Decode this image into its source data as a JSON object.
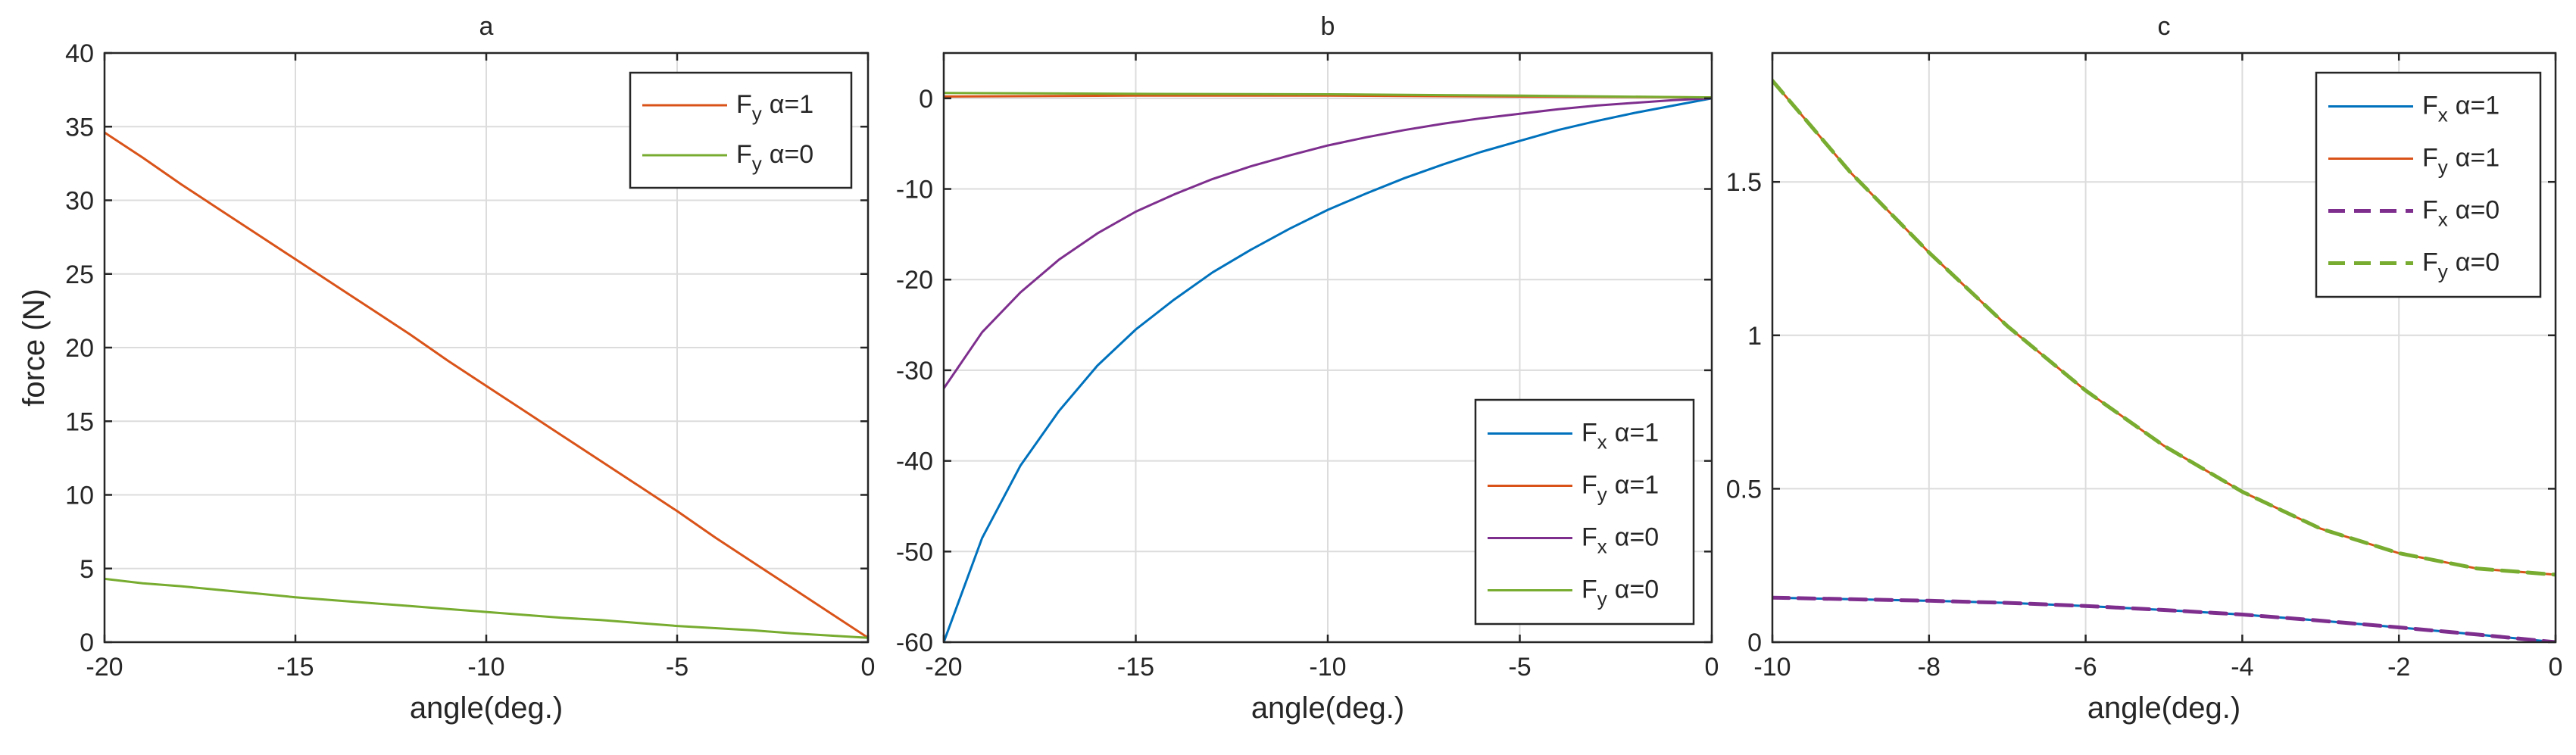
{
  "chart_data": [
    {
      "type": "line",
      "title": "a",
      "xlabel": "angle(deg.)",
      "ylabel": "force (N)",
      "xlim": [
        -20,
        0
      ],
      "ylim": [
        0,
        40
      ],
      "xticks": [
        -20,
        -15,
        -10,
        -5,
        0
      ],
      "yticks": [
        0,
        5,
        10,
        15,
        20,
        25,
        30,
        35,
        40
      ],
      "grid": true,
      "legend_position": "top-right",
      "series": [
        {
          "name": "Fy α=1",
          "base": "F",
          "sub": "y",
          "suffix": "α=1",
          "color": "#D95319",
          "dashed": false,
          "x": [
            -20,
            -19,
            -18,
            -17,
            -16,
            -15,
            -14,
            -13,
            -12,
            -11,
            -10,
            -9,
            -8,
            -7,
            -6,
            -5,
            -4,
            -3,
            -2,
            -1,
            0
          ],
          "y": [
            34.6,
            32.9,
            31.1,
            29.4,
            27.7,
            26.0,
            24.3,
            22.6,
            20.9,
            19.1,
            17.4,
            15.7,
            14.0,
            12.3,
            10.6,
            8.9,
            7.1,
            5.4,
            3.7,
            2.0,
            0.3
          ]
        },
        {
          "name": "Fy α=0",
          "base": "F",
          "sub": "y",
          "suffix": "α=0",
          "color": "#77AC30",
          "dashed": false,
          "x": [
            -20,
            -19,
            -18,
            -17,
            -16,
            -15,
            -14,
            -13,
            -12,
            -11,
            -10,
            -9,
            -8,
            -7,
            -6,
            -5,
            -4,
            -3,
            -2,
            -1,
            0
          ],
          "y": [
            4.3,
            4.0,
            3.8,
            3.55,
            3.3,
            3.05,
            2.85,
            2.65,
            2.45,
            2.25,
            2.05,
            1.85,
            1.65,
            1.5,
            1.3,
            1.1,
            0.95,
            0.8,
            0.6,
            0.45,
            0.3
          ]
        }
      ]
    },
    {
      "type": "line",
      "title": "b",
      "xlabel": "angle(deg.)",
      "ylabel": "",
      "xlim": [
        -20,
        0
      ],
      "ylim": [
        -60,
        5
      ],
      "xticks": [
        -20,
        -15,
        -10,
        -5,
        0
      ],
      "yticks": [
        -60,
        -50,
        -40,
        -30,
        -20,
        -10,
        0
      ],
      "grid": true,
      "legend_position": "bottom-right",
      "series": [
        {
          "name": "Fx α=1",
          "base": "F",
          "sub": "x",
          "suffix": "α=1",
          "color": "#0072BD",
          "dashed": false,
          "x": [
            -20,
            -19,
            -18,
            -17,
            -16,
            -15,
            -14,
            -13,
            -12,
            -11,
            -10,
            -9,
            -8,
            -7,
            -6,
            -5,
            -4,
            -3,
            -2,
            -1,
            0
          ],
          "y": [
            -60,
            -48.5,
            -40.5,
            -34.5,
            -29.5,
            -25.5,
            -22.2,
            -19.2,
            -16.7,
            -14.4,
            -12.3,
            -10.5,
            -8.8,
            -7.3,
            -5.9,
            -4.7,
            -3.5,
            -2.5,
            -1.6,
            -0.8,
            0
          ]
        },
        {
          "name": "Fy α=1",
          "base": "F",
          "sub": "y",
          "suffix": "α=1",
          "color": "#D95319",
          "dashed": false,
          "x": [
            -20,
            -15,
            -10,
            -5,
            0
          ],
          "y": [
            0.2,
            0.3,
            0.3,
            0.2,
            0.1
          ]
        },
        {
          "name": "Fx α=0",
          "base": "F",
          "sub": "x",
          "suffix": "α=0",
          "color": "#7E2F8E",
          "dashed": false,
          "x": [
            -20,
            -19,
            -18,
            -17,
            -16,
            -15,
            -14,
            -13,
            -12,
            -11,
            -10,
            -9,
            -8,
            -7,
            -6,
            -5,
            -4,
            -3,
            -2,
            -1,
            0
          ],
          "y": [
            -32,
            -25.8,
            -21.4,
            -17.8,
            -14.9,
            -12.5,
            -10.6,
            -8.9,
            -7.5,
            -6.3,
            -5.2,
            -4.3,
            -3.5,
            -2.8,
            -2.2,
            -1.7,
            -1.2,
            -0.8,
            -0.5,
            -0.2,
            0
          ]
        },
        {
          "name": "Fy α=0",
          "base": "F",
          "sub": "y",
          "suffix": "α=0",
          "color": "#77AC30",
          "dashed": false,
          "x": [
            -20,
            -15,
            -10,
            -5,
            0
          ],
          "y": [
            0.6,
            0.5,
            0.45,
            0.3,
            0.1
          ]
        }
      ]
    },
    {
      "type": "line",
      "title": "c",
      "xlabel": "angle(deg.)",
      "ylabel": "",
      "xlim": [
        -10,
        0
      ],
      "ylim": [
        0,
        1.92
      ],
      "xticks": [
        -10,
        -8,
        -6,
        -4,
        -2,
        0
      ],
      "yticks": [
        0,
        0.5,
        1,
        1.5
      ],
      "grid": true,
      "legend_position": "top-right",
      "series": [
        {
          "name": "Fx α=1",
          "base": "F",
          "sub": "x",
          "suffix": "α=1",
          "color": "#0072BD",
          "dashed": false,
          "x": [
            -10,
            -9,
            -8,
            -7,
            -6,
            -5,
            -4,
            -3,
            -2,
            -1,
            0
          ],
          "y": [
            0.145,
            0.14,
            0.135,
            0.128,
            0.118,
            0.105,
            0.09,
            0.07,
            0.048,
            0.025,
            0.0
          ]
        },
        {
          "name": "Fy α=1",
          "base": "F",
          "sub": "y",
          "suffix": "α=1",
          "color": "#D95319",
          "dashed": false,
          "x": [
            -10,
            -9,
            -8,
            -7,
            -6,
            -5,
            -4,
            -3,
            -2,
            -1,
            0
          ],
          "y": [
            1.83,
            1.53,
            1.27,
            1.03,
            0.82,
            0.64,
            0.49,
            0.37,
            0.29,
            0.24,
            0.22
          ]
        },
        {
          "name": "Fx α=0",
          "base": "F",
          "sub": "x",
          "suffix": "α=0",
          "color": "#7E2F8E",
          "dashed": true,
          "x": [
            -10,
            -9,
            -8,
            -7,
            -6,
            -5,
            -4,
            -3,
            -2,
            -1,
            0
          ],
          "y": [
            0.145,
            0.14,
            0.135,
            0.128,
            0.118,
            0.105,
            0.09,
            0.07,
            0.048,
            0.025,
            0.0
          ]
        },
        {
          "name": "Fy α=0",
          "base": "F",
          "sub": "y",
          "suffix": "α=0",
          "color": "#77AC30",
          "dashed": true,
          "x": [
            -10,
            -9,
            -8,
            -7,
            -6,
            -5,
            -4,
            -3,
            -2,
            -1,
            0
          ],
          "y": [
            1.83,
            1.53,
            1.27,
            1.03,
            0.82,
            0.64,
            0.49,
            0.37,
            0.29,
            0.24,
            0.22
          ]
        }
      ]
    }
  ]
}
